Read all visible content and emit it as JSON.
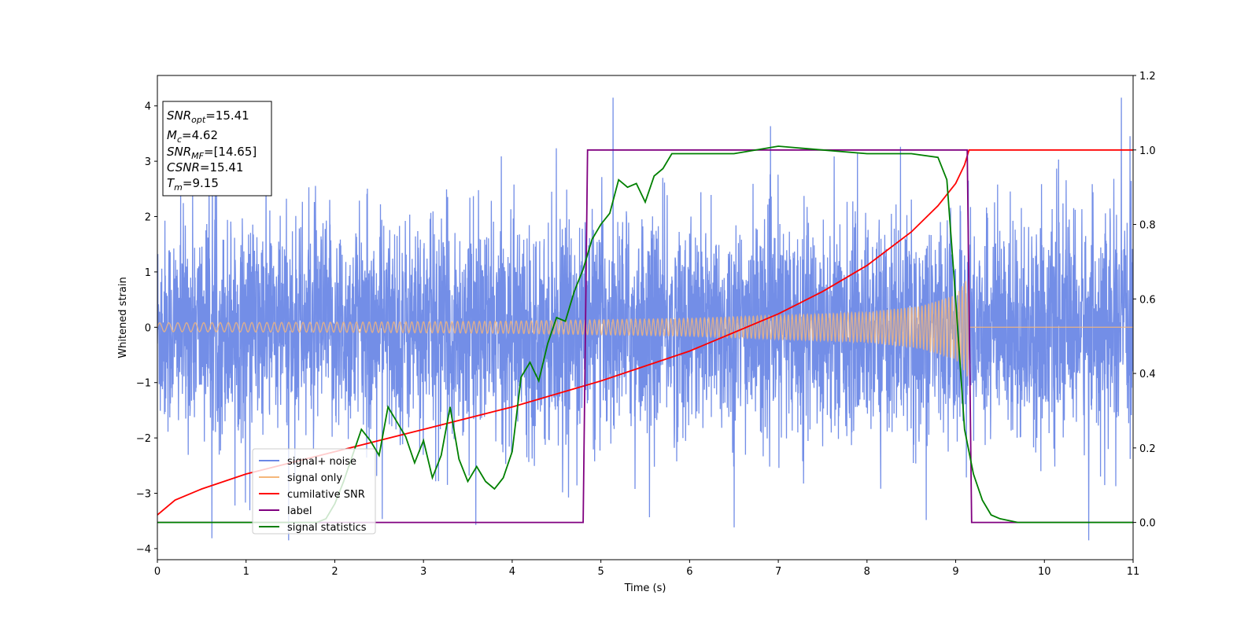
{
  "chart_data": {
    "type": "line",
    "xlabel": "Time (s)",
    "ylabel": "Whitened strain",
    "xlim": [
      0,
      11
    ],
    "ylim_left": [
      -4.2,
      4.55
    ],
    "ylim_right": [
      -0.1,
      1.2
    ],
    "xticks": [
      "0",
      "1",
      "2",
      "3",
      "4",
      "5",
      "6",
      "7",
      "8",
      "9",
      "10",
      "11"
    ],
    "yticks_left": [
      "4",
      "3",
      "2",
      "1",
      "0",
      "−1",
      "−2",
      "−3",
      "−4"
    ],
    "yticks_right": [
      "1.2",
      "1.0",
      "0.8",
      "0.6",
      "0.4",
      "0.2",
      "0.0"
    ],
    "grid": false,
    "legend_position": "lower-left",
    "legend": [
      "signal+ noise",
      "signal only",
      "cumilative SNR",
      "label",
      "signal statistics"
    ],
    "series": [
      {
        "name": "signal+ noise",
        "axis": "left",
        "color": "#6b88e6",
        "description_values": "whitened noisy strain, approx. ±1.5 band, peaks to ±3.8"
      },
      {
        "name": "signal only",
        "axis": "left",
        "color": "#f5b77a",
        "envelope": {
          "t": [
            0,
            2,
            4,
            6,
            8,
            8.6,
            9.0,
            9.1,
            9.15
          ],
          "amp": [
            0.08,
            0.09,
            0.11,
            0.16,
            0.27,
            0.38,
            0.58,
            0.8,
            0.95
          ]
        },
        "end_time": 9.15
      },
      {
        "name": "cumilative SNR",
        "axis": "right",
        "color": "#ff0000",
        "t": [
          0,
          0.2,
          0.5,
          1,
          2,
          3,
          4,
          5,
          6,
          6.5,
          7,
          7.5,
          8,
          8.5,
          8.8,
          9.0,
          9.1,
          9.15,
          11
        ],
        "values": [
          0.02,
          0.06,
          0.09,
          0.13,
          0.19,
          0.25,
          0.31,
          0.38,
          0.46,
          0.51,
          0.56,
          0.62,
          0.69,
          0.78,
          0.85,
          0.91,
          0.96,
          1.0,
          1.0
        ]
      },
      {
        "name": "label",
        "axis": "right",
        "color": "#800080",
        "t": [
          0,
          4.8,
          4.85,
          9.13,
          9.18,
          11
        ],
        "values": [
          0,
          0,
          1,
          1,
          0,
          0
        ]
      },
      {
        "name": "signal statistics",
        "axis": "right",
        "color": "#008000",
        "t": [
          0,
          1.8,
          1.9,
          2.0,
          2.1,
          2.2,
          2.3,
          2.4,
          2.5,
          2.6,
          2.7,
          2.8,
          2.9,
          3.0,
          3.1,
          3.2,
          3.3,
          3.4,
          3.5,
          3.6,
          3.7,
          3.8,
          3.9,
          4.0,
          4.1,
          4.2,
          4.3,
          4.4,
          4.5,
          4.6,
          4.7,
          4.8,
          4.9,
          5.0,
          5.1,
          5.2,
          5.3,
          5.4,
          5.5,
          5.6,
          5.7,
          5.8,
          5.9,
          6.0,
          6.5,
          7.0,
          7.5,
          8.0,
          8.5,
          8.8,
          8.9,
          9.0,
          9.1,
          9.2,
          9.3,
          9.4,
          9.5,
          9.7,
          10.0,
          11.0
        ],
        "values": [
          0.0,
          0.0,
          0.01,
          0.05,
          0.11,
          0.18,
          0.25,
          0.22,
          0.18,
          0.31,
          0.27,
          0.23,
          0.16,
          0.22,
          0.12,
          0.18,
          0.31,
          0.17,
          0.11,
          0.15,
          0.11,
          0.09,
          0.12,
          0.19,
          0.39,
          0.43,
          0.38,
          0.48,
          0.55,
          0.54,
          0.62,
          0.68,
          0.76,
          0.8,
          0.83,
          0.92,
          0.9,
          0.91,
          0.86,
          0.93,
          0.95,
          0.99,
          0.99,
          0.99,
          0.99,
          1.01,
          1.0,
          0.99,
          0.99,
          0.98,
          0.92,
          0.6,
          0.25,
          0.13,
          0.06,
          0.02,
          0.01,
          0.0,
          0.0,
          0.0
        ]
      }
    ],
    "annotation_box": {
      "lines": [
        {
          "base": "SNR",
          "sub": "opt",
          "rest": "=15.41"
        },
        {
          "base": "M",
          "sub": "c",
          "rest": "=4.62"
        },
        {
          "base": "SNR",
          "sub": "MF",
          "rest": "=[14.65]"
        },
        {
          "base": "CSNR",
          "sub": "",
          "rest": "=15.41"
        },
        {
          "base": "T",
          "sub": "m",
          "rest": "=9.15"
        }
      ]
    }
  }
}
